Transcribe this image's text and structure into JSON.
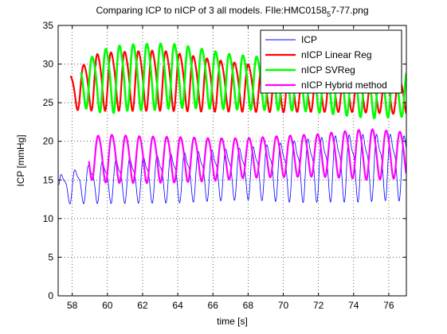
{
  "chart_data": {
    "type": "line",
    "title_pre": "Comparing ICP to nICP of 3 all models. FIle:HMC0158",
    "title_sub": "5",
    "title_post": "7-77.png",
    "xlabel": "time [s]",
    "ylabel": "ICP [mmHg]",
    "xlim": [
      57.2,
      77
    ],
    "ylim": [
      0,
      35
    ],
    "xticks": [
      58,
      60,
      62,
      64,
      66,
      68,
      70,
      72,
      74,
      76
    ],
    "yticks": [
      0,
      5,
      10,
      15,
      20,
      25,
      30,
      35
    ],
    "grid": true,
    "legend_position": "top-right",
    "series": [
      {
        "name": "ICP",
        "color": "#0000ff",
        "width": 0.8,
        "start": 57.25,
        "end": 77.0,
        "period": 0.78,
        "center_points": [
          [
            57.25,
            14.0
          ],
          [
            59.5,
            15.0
          ],
          [
            63,
            15.5
          ],
          [
            66,
            16.0
          ],
          [
            70,
            16.5
          ],
          [
            73,
            17.0
          ],
          [
            76,
            17.2
          ],
          [
            77,
            17.0
          ]
        ],
        "amp_points": [
          [
            57.25,
            2.2
          ],
          [
            59.5,
            3.2
          ],
          [
            64,
            3.8
          ],
          [
            68,
            4.0
          ],
          [
            71,
            4.8
          ],
          [
            74,
            5.2
          ],
          [
            77,
            5.0
          ]
        ],
        "harmonic": 0.35,
        "phase": 0.0
      },
      {
        "name": "nICP Linear Reg",
        "color": "#ff0000",
        "width": 2.2,
        "start": 57.9,
        "end": 77.0,
        "period": 0.78,
        "center_points": [
          [
            57.9,
            26.5
          ],
          [
            59.5,
            28.0
          ],
          [
            63,
            28.2
          ],
          [
            66,
            27.5
          ],
          [
            70,
            26.8
          ],
          [
            74,
            26.5
          ],
          [
            77,
            26.0
          ]
        ],
        "amp_points": [
          [
            57.9,
            2.5
          ],
          [
            59.5,
            4.2
          ],
          [
            63,
            4.4
          ],
          [
            67,
            3.6
          ],
          [
            71,
            3.0
          ],
          [
            77,
            2.6
          ]
        ],
        "harmonic": 0.15,
        "phase": 0.25
      },
      {
        "name": "nICP SVReg",
        "color": "#00ff00",
        "width": 2.6,
        "start": 58.5,
        "end": 77.0,
        "period": 0.78,
        "center_points": [
          [
            58.5,
            27.5
          ],
          [
            61,
            28.6
          ],
          [
            64,
            28.8
          ],
          [
            67,
            28.0
          ],
          [
            70,
            27.6
          ],
          [
            74,
            27.0
          ],
          [
            77,
            26.5
          ]
        ],
        "amp_points": [
          [
            58.5,
            3.2
          ],
          [
            60,
            4.8
          ],
          [
            63,
            4.8
          ],
          [
            67,
            4.0
          ],
          [
            71,
            3.6
          ],
          [
            75,
            4.0
          ],
          [
            77,
            3.4
          ]
        ],
        "harmonic": 0.15,
        "phase": 0.4
      },
      {
        "name": "nICP Hybrid method",
        "color": "#ff00ff",
        "width": 2.2,
        "start": 58.95,
        "end": 77.0,
        "period": 0.78,
        "center_points": [
          [
            58.95,
            18.0
          ],
          [
            62,
            17.8
          ],
          [
            66,
            17.8
          ],
          [
            70,
            18.2
          ],
          [
            74,
            18.5
          ],
          [
            77,
            18.4
          ]
        ],
        "amp_points": [
          [
            58.95,
            3.0
          ],
          [
            60,
            3.4
          ],
          [
            64,
            3.2
          ],
          [
            68,
            2.8
          ],
          [
            72,
            3.0
          ],
          [
            75,
            3.6
          ],
          [
            77,
            3.2
          ]
        ],
        "harmonic": 0.1,
        "phase": 0.55
      }
    ]
  }
}
